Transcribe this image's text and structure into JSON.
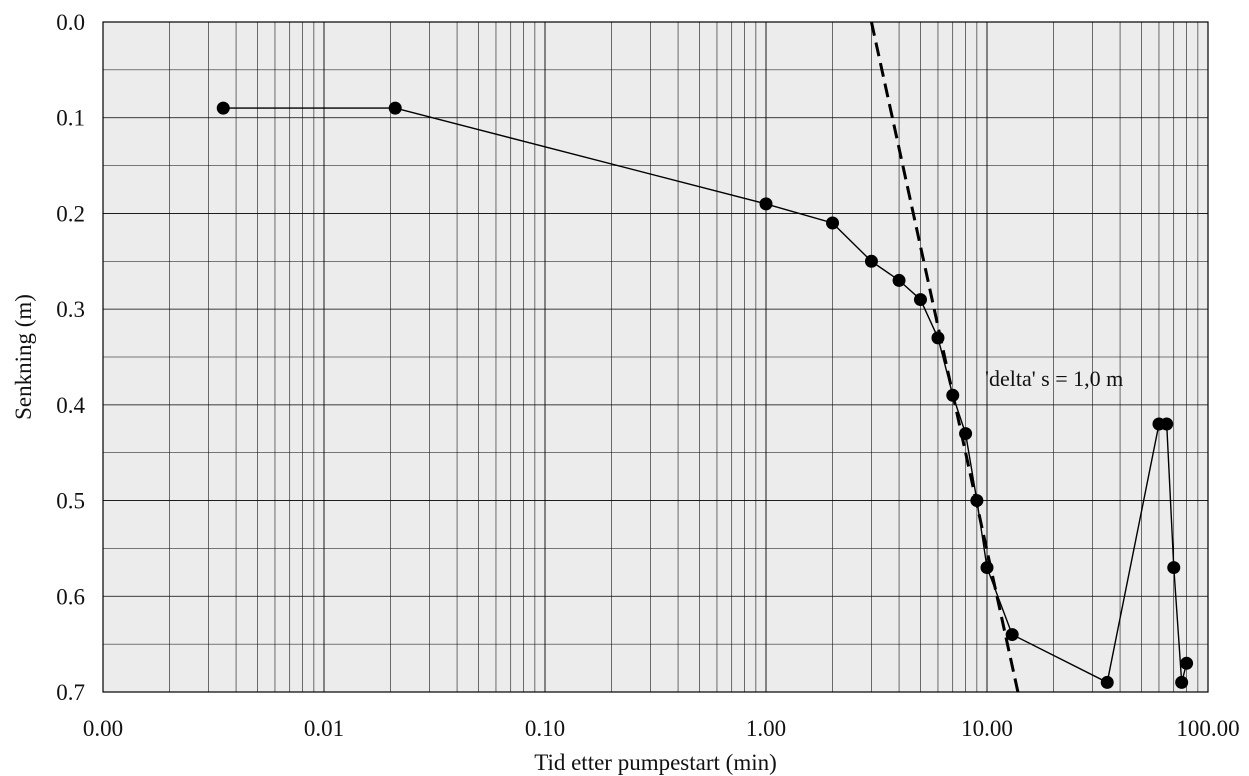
{
  "chart_data": {
    "type": "scatter",
    "xlabel": "Tid etter pumpestart (min)",
    "ylabel": "Senkning (m)",
    "x_scale": "log",
    "xlim": [
      0.001,
      100
    ],
    "ylim": [
      0,
      0.7
    ],
    "y_inverted": true,
    "grid": true,
    "x_tick_labels": [
      "0.00",
      "0.01",
      "0.10",
      "1.00",
      "10.00",
      "100.00"
    ],
    "x_tick_values": [
      0.001,
      0.01,
      0.1,
      1,
      10,
      100
    ],
    "y_tick_labels": [
      "0.0",
      "0.1",
      "0.2",
      "0.3",
      "0.4",
      "0.5",
      "0.6",
      "0.7"
    ],
    "y_tick_values": [
      0,
      0.1,
      0.2,
      0.3,
      0.4,
      0.5,
      0.6,
      0.7
    ],
    "series": [
      {
        "style": "line-markers",
        "color": "#000000",
        "x": [
          0.0035,
          0.021,
          1.0,
          2.0,
          3.0,
          4.0,
          5.0,
          6.0,
          7.0,
          8.0,
          9.0,
          10.0,
          13.0,
          35.0,
          60.0,
          65.0,
          70.0,
          76.0,
          80.0
        ],
        "y": [
          0.09,
          0.09,
          0.19,
          0.21,
          0.25,
          0.27,
          0.29,
          0.33,
          0.39,
          0.43,
          0.5,
          0.57,
          0.64,
          0.69,
          0.42,
          0.42,
          0.57,
          0.69,
          0.67
        ]
      }
    ],
    "trend_line": {
      "style": "dashed",
      "color": "#000000",
      "x": [
        3.0,
        13.8
      ],
      "y": [
        0.0,
        0.7
      ]
    },
    "annotations": [
      {
        "text": "'delta' s = 1,0 m",
        "x": 9.0,
        "y": 0.375
      }
    ]
  }
}
